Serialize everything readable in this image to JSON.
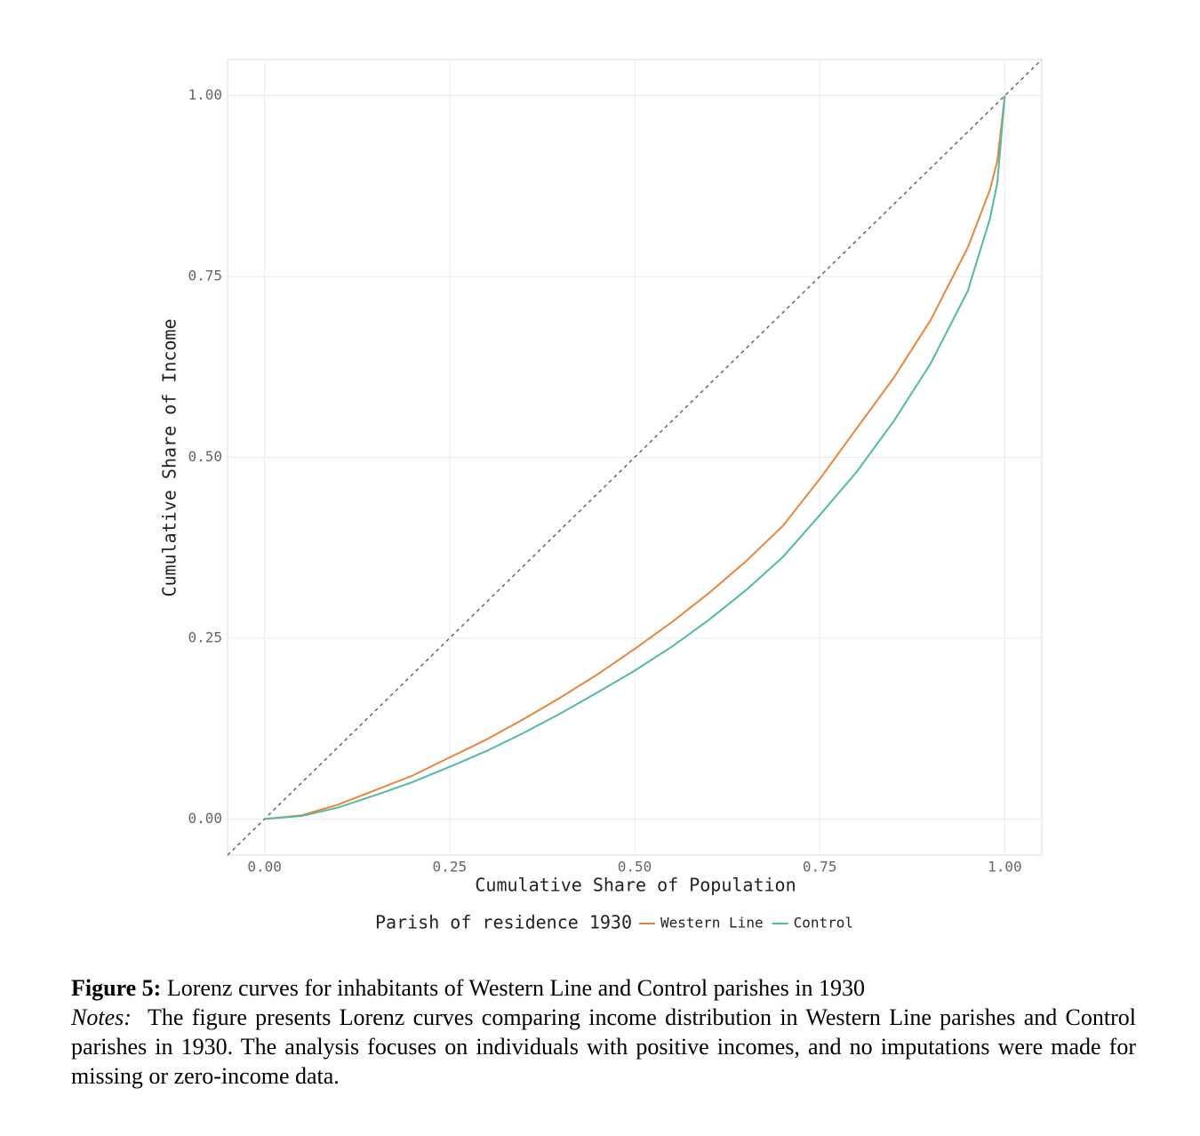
{
  "chart_data": {
    "type": "line",
    "x_label": "Cumulative Share of Population",
    "y_label": "Cumulative Share of Income",
    "x": [
      0,
      0.05,
      0.1,
      0.15,
      0.2,
      0.25,
      0.3,
      0.35,
      0.4,
      0.45,
      0.5,
      0.55,
      0.6,
      0.65,
      0.7,
      0.75,
      0.8,
      0.85,
      0.9,
      0.95,
      0.98,
      0.99,
      1
    ],
    "series": [
      {
        "name": "Western Line",
        "color": "#e8853d",
        "values": [
          0,
          0.005,
          0.02,
          0.04,
          0.06,
          0.085,
          0.11,
          0.138,
          0.168,
          0.2,
          0.235,
          0.272,
          0.312,
          0.356,
          0.405,
          0.47,
          0.54,
          0.61,
          0.69,
          0.79,
          0.87,
          0.91,
          1
        ]
      },
      {
        "name": "Control",
        "color": "#52b9a2",
        "values": [
          0,
          0.004,
          0.016,
          0.033,
          0.051,
          0.072,
          0.094,
          0.119,
          0.146,
          0.175,
          0.205,
          0.238,
          0.275,
          0.316,
          0.362,
          0.42,
          0.48,
          0.55,
          0.63,
          0.73,
          0.83,
          0.88,
          1
        ]
      }
    ],
    "xlim": [
      -0.05,
      1.05
    ],
    "ylim": [
      -0.05,
      1.05
    ],
    "xticks": [
      {
        "value": 0,
        "label": "0.00"
      },
      {
        "value": 0.25,
        "label": "0.25"
      },
      {
        "value": 0.5,
        "label": "0.50"
      },
      {
        "value": 0.75,
        "label": "0.75"
      },
      {
        "value": 1,
        "label": "1.00"
      }
    ],
    "yticks": [
      {
        "value": 0,
        "label": "0.00"
      },
      {
        "value": 0.25,
        "label": "0.25"
      },
      {
        "value": 0.5,
        "label": "0.50"
      },
      {
        "value": 0.75,
        "label": "0.75"
      },
      {
        "value": 1,
        "label": "1.00"
      }
    ],
    "grid": true,
    "legend_title": "Parish of residence 1930",
    "legend_position": "bottom"
  },
  "caption": {
    "label": "Figure 5:",
    "title": "Lorenz curves for inhabitants of Western Line and Control parishes in 1930"
  },
  "notes": {
    "label": "Notes:",
    "text": "The figure presents Lorenz curves comparing income distribution in Western Line parishes and Control parishes in 1930.  The analysis focuses on individuals with positive incomes, and no imputations were made for missing or zero-income data."
  }
}
